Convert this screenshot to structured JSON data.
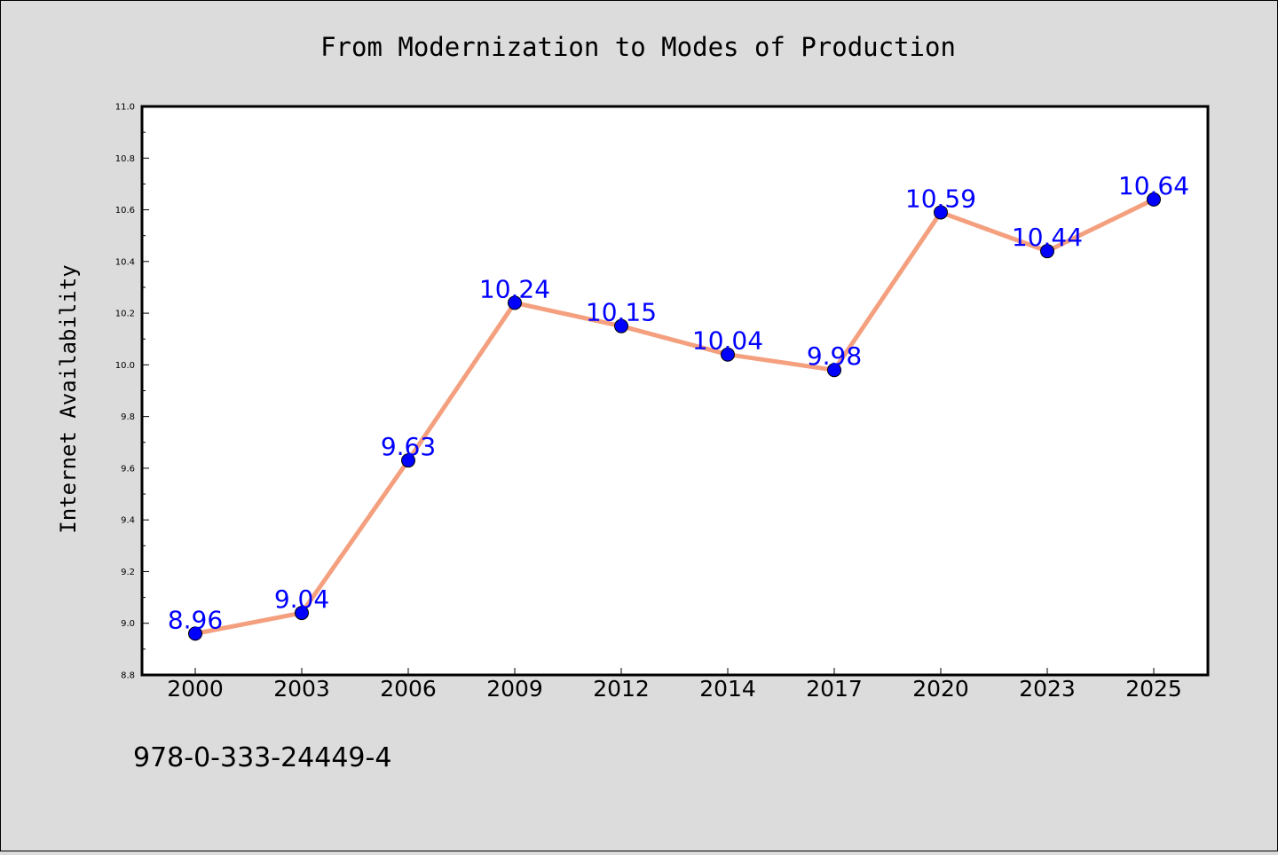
{
  "chart_data": {
    "type": "line",
    "title": "From Modernization to Modes of Production",
    "xlabel": "",
    "ylabel": "Internet Availability",
    "categories": [
      "2000",
      "2003",
      "2006",
      "2009",
      "2012",
      "2014",
      "2017",
      "2020",
      "2023",
      "2025"
    ],
    "series": [
      {
        "values": [
          8.96,
          9.04,
          9.63,
          10.24,
          10.15,
          10.04,
          9.98,
          10.59,
          10.44,
          10.64
        ],
        "data_labels": [
          "8.96",
          "9.04",
          "9.63",
          "10.24",
          "10.15",
          "10.04",
          "9.98",
          "10.59",
          "10.44",
          "10.64"
        ]
      }
    ],
    "ylim": [
      8.8,
      11.0
    ],
    "yticks": [
      "8.8",
      "9.0",
      "9.2",
      "9.4",
      "9.6",
      "9.8",
      "10.0",
      "10.2",
      "10.4",
      "10.6",
      "10.8",
      "11.0"
    ],
    "grid": false,
    "legend": "none",
    "line_color": "#f4a07f",
    "marker_color": "#0000ff",
    "label_color": "#0000ff"
  },
  "footer": {
    "isbn": "978-0-333-24449-4"
  },
  "colors": {
    "background": "#dcdcdc",
    "plot_background": "#ffffff",
    "axis": "#000000"
  }
}
